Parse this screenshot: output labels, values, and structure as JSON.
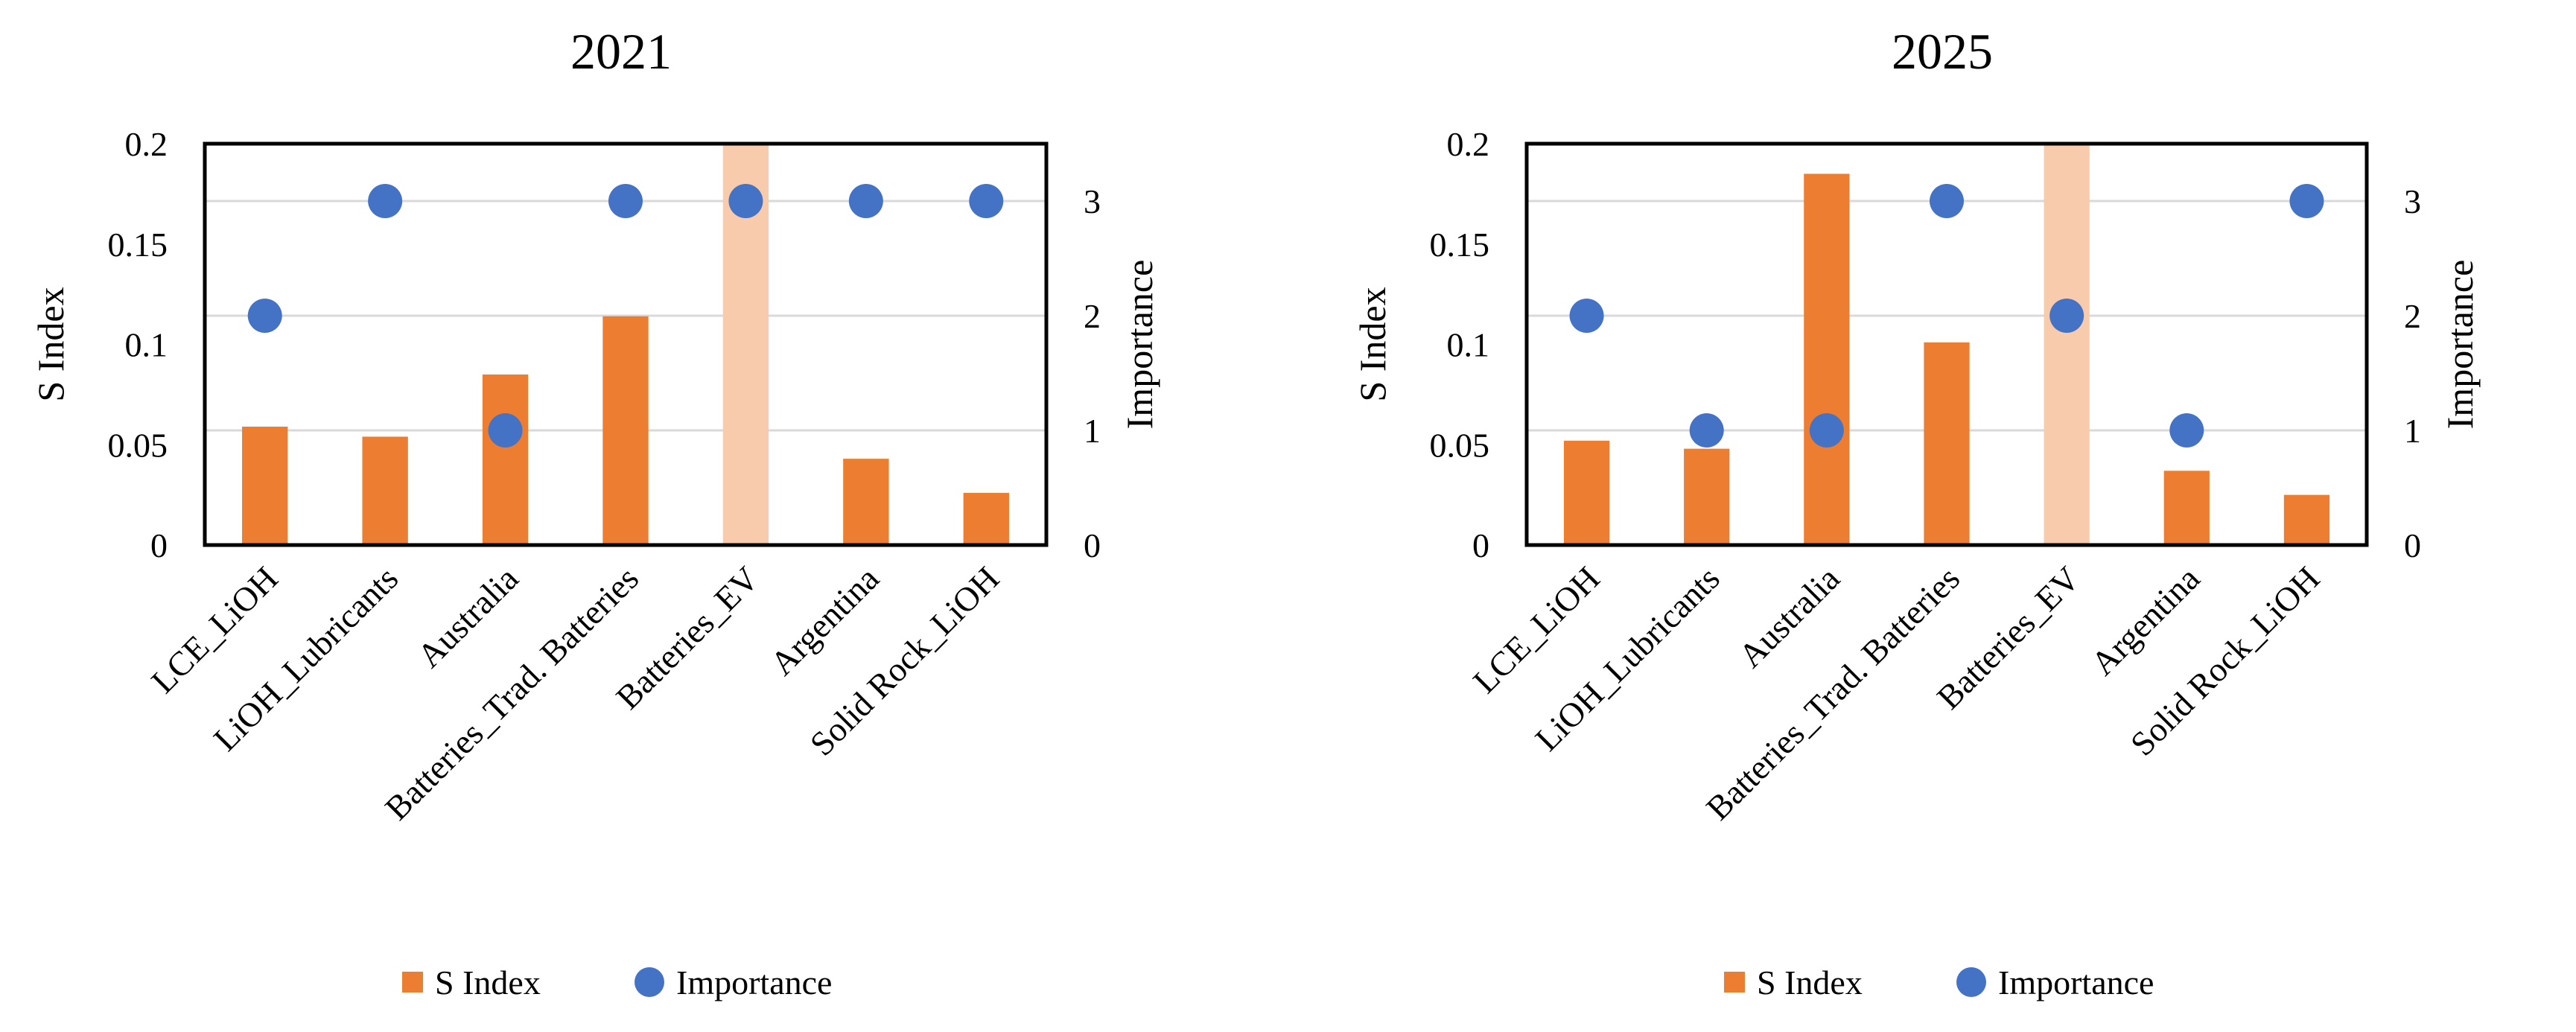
{
  "chart_data": [
    {
      "type": "bar+scatter",
      "title": "2021",
      "categories": [
        "LCE_LiOH",
        "LiOH_Lubricants",
        "Australia",
        "Batteries_Trad. Batteries",
        "Batteries_EV",
        "Argentina",
        "Solid Rock_LiOH"
      ],
      "series": [
        {
          "name": "S Index",
          "kind": "bar",
          "axis": "left",
          "values": [
            0.059,
            0.054,
            0.085,
            0.114,
            0.2,
            0.043,
            0.026
          ],
          "highlight_index": 4
        },
        {
          "name": "Importance",
          "kind": "scatter",
          "axis": "right",
          "values": [
            2,
            3,
            1,
            3,
            3,
            3,
            3
          ]
        }
      ],
      "ylabel": "S Index",
      "y2label": "Importance",
      "ylim": [
        0,
        0.2
      ],
      "y2lim": [
        0,
        3.5
      ],
      "yticks": [
        "0",
        "0.05",
        "0.1",
        "0.15",
        "0.2"
      ],
      "y2ticks": [
        "0",
        "1",
        "2",
        "3"
      ],
      "grid": true
    },
    {
      "type": "bar+scatter",
      "title": "2025",
      "categories": [
        "LCE_LiOH",
        "LiOH_Lubricants",
        "Australia",
        "Batteries_Trad. Batteries",
        "Batteries_EV",
        "Argentina",
        "Solid Rock_LiOH"
      ],
      "series": [
        {
          "name": "S Index",
          "kind": "bar",
          "axis": "left",
          "values": [
            0.052,
            0.048,
            0.185,
            0.101,
            0.2,
            0.037,
            0.025
          ],
          "highlight_index": 4
        },
        {
          "name": "Importance",
          "kind": "scatter",
          "axis": "right",
          "values": [
            2,
            1,
            1,
            3,
            2,
            1,
            3
          ]
        }
      ],
      "ylabel": "S Index",
      "y2label": "Importance",
      "ylim": [
        0,
        0.2
      ],
      "y2lim": [
        0,
        3.5
      ],
      "yticks": [
        "0",
        "0.05",
        "0.1",
        "0.15",
        "0.2"
      ],
      "y2ticks": [
        "0",
        "1",
        "2",
        "3"
      ],
      "grid": true
    }
  ],
  "legend": {
    "bar_label": "S Index",
    "dot_label": "Importance",
    "placement": "bottom-center"
  },
  "colors": {
    "bar": "#ED7D31",
    "bar_highlight": "#F8CBAD",
    "dot": "#4472C4"
  }
}
